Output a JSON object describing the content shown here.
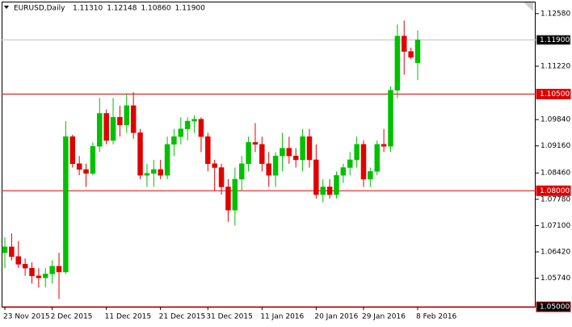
{
  "chart_data": {
    "type": "candlestick",
    "title": "EURUSD,Daily",
    "header_values": [
      "1.11310",
      "1.12148",
      "1.10860",
      "1.11900"
    ],
    "up_color": "#00c000",
    "down_color": "#e00000",
    "categories": [
      "23 Nov 2015",
      null,
      null,
      null,
      null,
      null,
      null,
      "2 Dec 2015",
      null,
      null,
      null,
      null,
      null,
      null,
      null,
      "11 Dec 2015",
      null,
      null,
      null,
      null,
      null,
      null,
      null,
      "21 Dec 2015",
      null,
      null,
      null,
      null,
      null,
      null,
      "31 Dec 2015",
      null,
      null,
      null,
      null,
      null,
      null,
      null,
      "11 Jan 2016",
      null,
      null,
      null,
      null,
      null,
      null,
      null,
      "20 Jan 2016",
      null,
      null,
      null,
      null,
      null,
      null,
      "29 Jan 2016",
      null,
      null,
      null,
      null,
      null,
      null,
      null,
      "8 Feb 2016"
    ],
    "open": [
      1.064,
      1.0655,
      1.063,
      1.061,
      1.06,
      1.058,
      1.0575,
      1.0585,
      1.0605,
      1.059,
      1.094,
      1.087,
      1.0855,
      1.0845,
      1.0915,
      1.1,
      1.093,
      1.099,
      1.097,
      1.102,
      1.095,
      1.084,
      1.0845,
      1.0855,
      1.084,
      1.092,
      1.094,
      1.096,
      1.098,
      1.0985,
      1.094,
      1.087,
      1.086,
      1.081,
      1.075,
      1.083,
      1.087,
      1.0925,
      1.092,
      1.087,
      1.084,
      1.089,
      1.091,
      1.089,
      1.088,
      1.094,
      1.088,
      1.079,
      1.081,
      1.079,
      1.084,
      1.086,
      1.088,
      1.092,
      1.083,
      1.085,
      1.092,
      1.0915,
      1.106,
      1.12,
      1.116,
      1.1131
    ],
    "high": [
      1.068,
      1.069,
      1.067,
      1.0625,
      1.0615,
      1.06,
      1.06,
      1.062,
      1.064,
      1.098,
      1.0945,
      1.089,
      1.087,
      1.0925,
      1.104,
      1.101,
      1.104,
      1.102,
      1.105,
      1.1055,
      1.096,
      1.087,
      1.088,
      1.088,
      1.094,
      1.096,
      1.099,
      1.099,
      1.0995,
      1.099,
      1.095,
      1.088,
      1.087,
      1.083,
      1.086,
      1.089,
      1.094,
      1.0975,
      1.094,
      1.09,
      1.09,
      1.095,
      1.094,
      1.091,
      1.096,
      1.096,
      1.092,
      1.083,
      1.083,
      1.085,
      1.087,
      1.09,
      1.094,
      1.093,
      1.086,
      1.093,
      1.096,
      1.107,
      1.123,
      1.124,
      1.117,
      1.12148
    ],
    "low": [
      1.06,
      1.062,
      1.06,
      1.058,
      1.056,
      1.055,
      1.055,
      1.056,
      1.052,
      1.0585,
      1.086,
      1.084,
      1.081,
      1.084,
      1.09,
      1.092,
      1.092,
      1.094,
      1.095,
      1.0935,
      1.083,
      1.081,
      1.081,
      1.083,
      1.083,
      1.089,
      1.092,
      1.093,
      1.095,
      1.09,
      1.085,
      1.08,
      1.079,
      1.072,
      1.071,
      1.08,
      1.085,
      1.09,
      1.085,
      1.081,
      1.081,
      1.085,
      1.087,
      1.086,
      1.085,
      1.086,
      1.078,
      1.077,
      1.078,
      1.078,
      1.082,
      1.084,
      1.086,
      1.081,
      1.081,
      1.084,
      1.09,
      1.09,
      1.104,
      1.11,
      1.114,
      1.1086
    ],
    "close": [
      1.0655,
      1.063,
      1.061,
      1.06,
      1.058,
      1.0575,
      1.0585,
      1.0605,
      1.059,
      1.094,
      1.087,
      1.0855,
      1.0845,
      1.0915,
      1.1,
      1.093,
      1.099,
      1.097,
      1.102,
      1.095,
      1.084,
      1.0845,
      1.0855,
      1.084,
      1.092,
      1.094,
      1.096,
      1.098,
      1.0985,
      1.094,
      1.087,
      1.086,
      1.081,
      1.075,
      1.083,
      1.087,
      1.0925,
      1.092,
      1.087,
      1.084,
      1.089,
      1.091,
      1.089,
      1.088,
      1.094,
      1.088,
      1.079,
      1.081,
      1.079,
      1.084,
      1.086,
      1.088,
      1.092,
      1.083,
      1.085,
      1.092,
      1.0915,
      1.106,
      1.12,
      1.116,
      1.1145,
      1.119
    ],
    "ylim": [
      1.05,
      1.1289
    ],
    "yticks": [
      {
        "value": 1.1258,
        "label": "1.12580"
      },
      {
        "value": 1.1122,
        "label": "1.11220"
      },
      {
        "value": 1.0984,
        "label": "1.09840"
      },
      {
        "value": 1.0916,
        "label": "1.09160"
      },
      {
        "value": 1.0846,
        "label": "1.08460"
      },
      {
        "value": 1.0778,
        "label": "1.07780"
      },
      {
        "value": 1.071,
        "label": "1.07100"
      },
      {
        "value": 1.0642,
        "label": "1.06420"
      },
      {
        "value": 1.0574,
        "label": "1.05740"
      }
    ],
    "hlines": [
      {
        "value": 1.119,
        "label": "1.11900",
        "color": "#c0c0c0",
        "box": "#000000"
      },
      {
        "value": 1.105,
        "label": "1.10500",
        "color": "#e00000",
        "box": "#e00000"
      },
      {
        "value": 1.08,
        "label": "1.08000",
        "color": "#e00000",
        "box": "#e00000"
      },
      {
        "value": 1.05,
        "label": "1.05000",
        "color": "#e00000",
        "box": "#000000"
      }
    ]
  }
}
